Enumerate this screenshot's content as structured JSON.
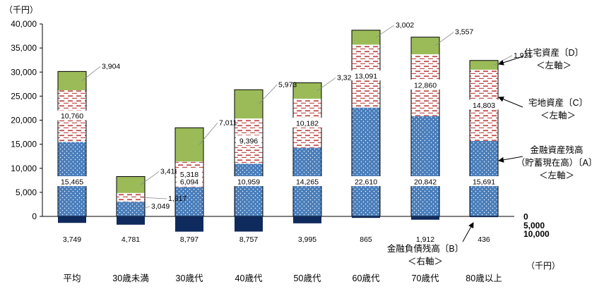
{
  "chart_data": {
    "type": "bar",
    "unit_label": "（千円）",
    "categories": [
      "平均",
      "30歳未満",
      "30歳代",
      "40歳代",
      "50歳代",
      "60歳代",
      "70歳代",
      "80歳以上"
    ],
    "left_axis": {
      "ylim": [
        0,
        40000
      ],
      "ticks": [
        "0",
        "5,000",
        "10,000",
        "15,000",
        "20,000",
        "25,000",
        "30,000",
        "35,000",
        "40,000"
      ]
    },
    "right_axis": {
      "ticks": [
        "0",
        "5,000",
        "10,000"
      ],
      "unit_label": "（千円）"
    },
    "series": [
      {
        "key": "financial",
        "name": "金融資産残高（貯蓄現在高）〔A〕＜左軸＞",
        "color": "#4a7ebb",
        "values": [
          15465,
          3049,
          6094,
          10959,
          14265,
          22610,
          20842,
          15691
        ],
        "labels": [
          "15,465",
          "3,049",
          "6,094",
          "10,959",
          "14,265",
          "22,610",
          "20,842",
          "15,691"
        ]
      },
      {
        "key": "land",
        "name": "宅地資産〔C〕＜左軸＞",
        "color": "#c0504d",
        "values": [
          10760,
          1817,
          5318,
          9396,
          10182,
          13091,
          12860,
          14803
        ],
        "labels": [
          "10,760",
          "1,817",
          "5,318",
          "9,396",
          "10,182",
          "13,091",
          "12,860",
          "14,803"
        ]
      },
      {
        "key": "housing",
        "name": "住宅資産〔D〕＜左軸＞",
        "color": "#9bbb59",
        "values": [
          3904,
          3418,
          7011,
          5973,
          3329,
          3002,
          3557,
          1921
        ],
        "labels": [
          "3,904",
          "3,418",
          "7,011",
          "5,973",
          "3,329",
          "3,002",
          "3,557",
          "1,921"
        ]
      },
      {
        "key": "debt",
        "name": "金融負債残高〔B〕＜右軸＞",
        "color": "#0f2a5c",
        "values": [
          3749,
          4781,
          8797,
          8757,
          3995,
          865,
          1912,
          436
        ],
        "labels": [
          "3,749",
          "4,781",
          "8,797",
          "8,757",
          "3,995",
          "865",
          "1,912",
          "436"
        ]
      }
    ],
    "legend": {
      "housing": [
        "住宅資産〔D〕",
        "＜左軸＞"
      ],
      "land": [
        "宅地資産〔C〕",
        "＜左軸＞"
      ],
      "financial": [
        "金融資産残高",
        "（貯蓄現在高）〔A〕",
        "＜左軸＞"
      ],
      "debt": [
        "金融負債残高〔B〕",
        "＜右軸＞"
      ]
    },
    "legend_placement": "right",
    "grid": false
  }
}
